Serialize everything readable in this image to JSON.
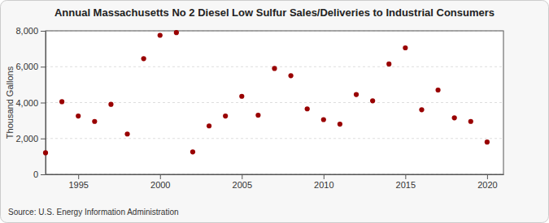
{
  "chart_data": {
    "type": "scatter",
    "title": "Annual Massachusetts No 2 Diesel Low Sulfur Sales/Deliveries to Industrial Consumers",
    "y_label": "Thousand Gallons",
    "source": "Source: U.S. Energy Information Administration",
    "x": [
      1993,
      1994,
      1995,
      1996,
      1997,
      1998,
      1999,
      2000,
      2001,
      2002,
      2003,
      2004,
      2005,
      2006,
      2007,
      2008,
      2009,
      2010,
      2011,
      2012,
      2013,
      2014,
      2015,
      2016,
      2017,
      2018,
      2019,
      2020
    ],
    "values": [
      1200,
      4050,
      3250,
      2950,
      3900,
      2250,
      6450,
      7750,
      7900,
      1250,
      2700,
      3250,
      4350,
      3300,
      5900,
      5500,
      3650,
      3050,
      2800,
      4450,
      4100,
      6150,
      7050,
      3600,
      4700,
      3150,
      2950,
      1800
    ],
    "color": "#990000",
    "marker": "circle",
    "xlim": [
      1993,
      2021
    ],
    "xticks": [
      1995,
      2000,
      2005,
      2010,
      2015,
      2020
    ],
    "ylim": [
      0,
      8000
    ],
    "yticks": [
      0,
      {
        "value": 2000,
        "label": "2,000"
      },
      {
        "value": 4000,
        "label": "4,000"
      },
      {
        "value": 6000,
        "label": "6,000"
      },
      {
        "value": 8000,
        "label": "8,000"
      }
    ],
    "grid": true
  }
}
